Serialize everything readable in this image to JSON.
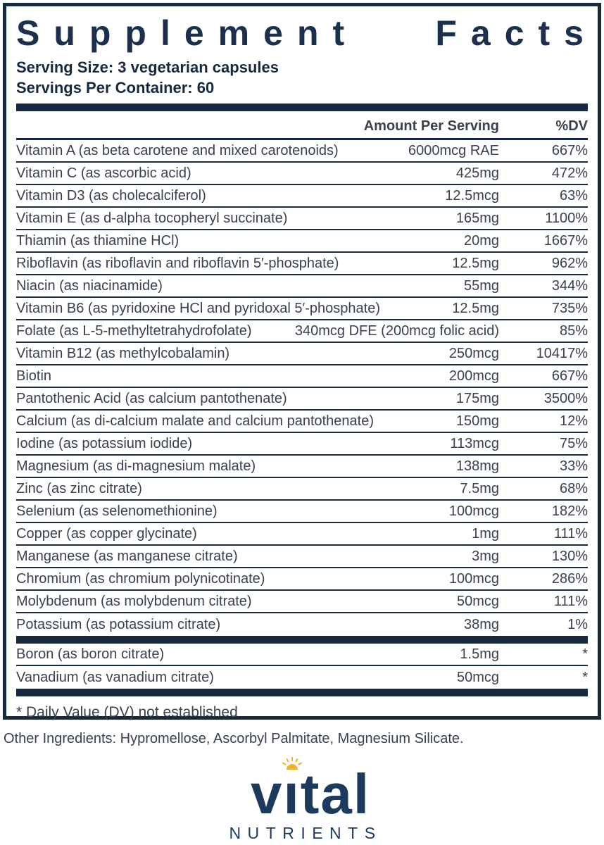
{
  "title": {
    "full": "Supplement Facts",
    "left": "Supplement",
    "right": "Facts"
  },
  "serving": {
    "size": "Serving Size: 3 vegetarian capsules",
    "per_container": "Servings Per Container: 60"
  },
  "table": {
    "amount_header": "Amount Per Serving",
    "dv_header": "%DV",
    "rows": [
      {
        "name": "Vitamin A (as beta carotene and mixed carotenoids)",
        "amount": "6000mcg RAE",
        "dv": "667%"
      },
      {
        "name": "Vitamin C (as ascorbic acid)",
        "amount": "425mg",
        "dv": "472%"
      },
      {
        "name": "Vitamin D3 (as cholecalciferol)",
        "amount": "12.5mcg",
        "dv": "63%"
      },
      {
        "name": "Vitamin E (as d-alpha tocopheryl succinate)",
        "amount": "165mg",
        "dv": "1100%"
      },
      {
        "name": "Thiamin (as thiamine HCl)",
        "amount": "20mg",
        "dv": "1667%"
      },
      {
        "name": "Riboflavin (as riboflavin and riboflavin 5′-phosphate)",
        "amount": "12.5mg",
        "dv": "962%"
      },
      {
        "name": "Niacin (as niacinamide)",
        "amount": "55mg",
        "dv": "344%"
      },
      {
        "name": "Vitamin B6 (as pyridoxine HCl and pyridoxal 5′-phosphate)",
        "amount": "12.5mg",
        "dv": "735%"
      },
      {
        "name": "Folate (as L-5-methyltetrahydrofolate)",
        "amount": "340mcg DFE (200mcg folic acid)",
        "dv": "85%"
      },
      {
        "name": "Vitamin B12 (as methylcobalamin)",
        "amount": "250mcg",
        "dv": "10417%"
      },
      {
        "name": "Biotin",
        "amount": "200mcg",
        "dv": "667%"
      },
      {
        "name": "Pantothenic Acid (as calcium pantothenate)",
        "amount": "175mg",
        "dv": "3500%"
      },
      {
        "name": "Calcium (as di-calcium malate and calcium pantothenate)",
        "amount": "150mg",
        "dv": "12%"
      },
      {
        "name": "Iodine (as potassium iodide)",
        "amount": "113mcg",
        "dv": "75%"
      },
      {
        "name": "Magnesium (as di-magnesium malate)",
        "amount": "138mg",
        "dv": "33%"
      },
      {
        "name": "Zinc (as zinc citrate)",
        "amount": "7.5mg",
        "dv": "68%"
      },
      {
        "name": "Selenium (as selenomethionine)",
        "amount": "100mcg",
        "dv": "182%"
      },
      {
        "name": "Copper (as copper glycinate)",
        "amount": "1mg",
        "dv": "111%"
      },
      {
        "name": "Manganese (as manganese citrate)",
        "amount": "3mg",
        "dv": "130%"
      },
      {
        "name": "Chromium (as chromium polynicotinate)",
        "amount": "100mcg",
        "dv": "286%"
      },
      {
        "name": "Molybdenum (as molybdenum citrate)",
        "amount": "50mcg",
        "dv": "111%"
      },
      {
        "name": "Potassium (as potassium citrate)",
        "amount": "38mg",
        "dv": "1%"
      }
    ],
    "sub_rows": [
      {
        "name": "Boron (as boron citrate)",
        "amount": "1.5mg",
        "dv": "*"
      },
      {
        "name": "Vanadium (as vanadium citrate)",
        "amount": "50mcg",
        "dv": "*"
      }
    ],
    "footnote": "* Daily Value (DV) not established"
  },
  "other_ingredients": "Other Ingredients: Hypromellose, Ascorbyl Palmitate, Magnesium Silicate.",
  "logo": {
    "text": "vital",
    "subtext": "NUTRIENTS"
  },
  "colors": {
    "navy": "#16293f",
    "title_navy": "#1c2f4d",
    "row_text": "#39414e",
    "logo_navy": "#1c3a5e",
    "sun_gold": "#f2b02a"
  }
}
